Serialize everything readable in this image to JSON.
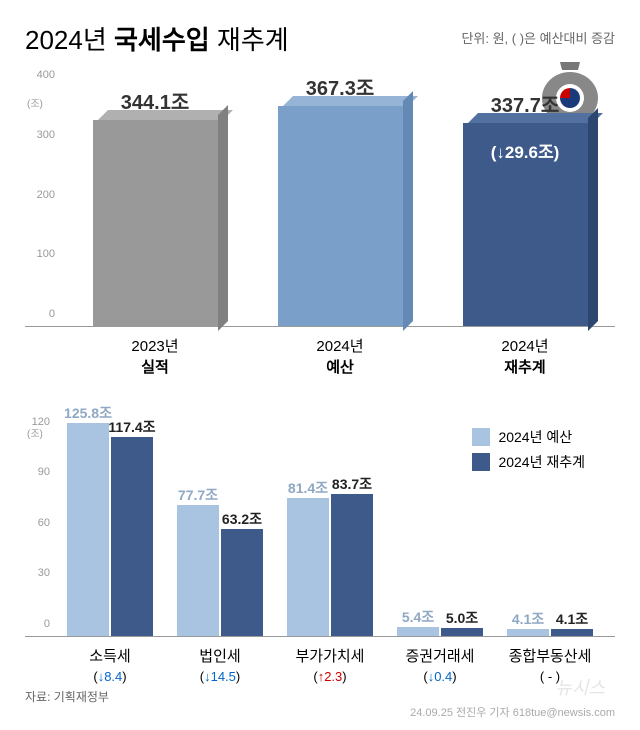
{
  "title_prefix": "2024년 ",
  "title_bold": "국세수입",
  "title_suffix": " 재추계",
  "unit_text": "단위: 원, ( )은 예산대비 증감",
  "chart1": {
    "ymax": 400,
    "ytick_step": 100,
    "yunit": "(조)",
    "bars": [
      {
        "label": "344.1조",
        "value": 344.1,
        "front": "#999999",
        "top": "#b0b0b0",
        "side": "#808080",
        "change": null,
        "year": "2023년",
        "type": "실적"
      },
      {
        "label": "367.3조",
        "value": 367.3,
        "front": "#7a9fc9",
        "top": "#95b4d6",
        "side": "#6589b5",
        "change": null,
        "year": "2024년",
        "type": "예산"
      },
      {
        "label": "337.7조",
        "value": 337.7,
        "front": "#3d5a8a",
        "top": "#5270a0",
        "side": "#2d4670",
        "change": "(↓29.6조)",
        "year": "2024년",
        "type": "재추계"
      }
    ]
  },
  "chart2": {
    "ymax": 130,
    "yticks": [
      0,
      30,
      60,
      90,
      120
    ],
    "yunit": "(조)",
    "legend": [
      {
        "label": "2024년 예산",
        "color": "#a8c4e0"
      },
      {
        "label": "2024년 재추계",
        "color": "#3d5a8a"
      }
    ],
    "categories": [
      {
        "name": "소득세",
        "budget": 125.8,
        "budget_label": "125.8조",
        "reest": 117.4,
        "reest_label": "117.4조",
        "change": "↓8.4",
        "arrow": "down"
      },
      {
        "name": "법인세",
        "budget": 77.7,
        "budget_label": "77.7조",
        "reest": 63.2,
        "reest_label": "63.2조",
        "change": "↓14.5",
        "arrow": "down"
      },
      {
        "name": "부가가치세",
        "budget": 81.4,
        "budget_label": "81.4조",
        "reest": 83.7,
        "reest_label": "83.7조",
        "change": "↑2.3",
        "arrow": "up"
      },
      {
        "name": "증권거래세",
        "budget": 5.4,
        "budget_label": "5.4조",
        "reest": 5.0,
        "reest_label": "5.0조",
        "change": "↓0.4",
        "arrow": "down"
      },
      {
        "name": "종합부동산세",
        "budget": 4.1,
        "budget_label": "4.1조",
        "reest": 4.1,
        "reest_label": "4.1조",
        "change": " - ",
        "arrow": "none"
      }
    ],
    "budget_color": "#a8c4e0",
    "reest_color": "#3d5a8a",
    "budget_label_color": "#8fa8c4",
    "reest_label_color": "#222222"
  },
  "source": "자료: 기획재정부",
  "credit": "24.09.25 전진우 기자 618tue@newsis.com",
  "watermark": "뉴시스"
}
